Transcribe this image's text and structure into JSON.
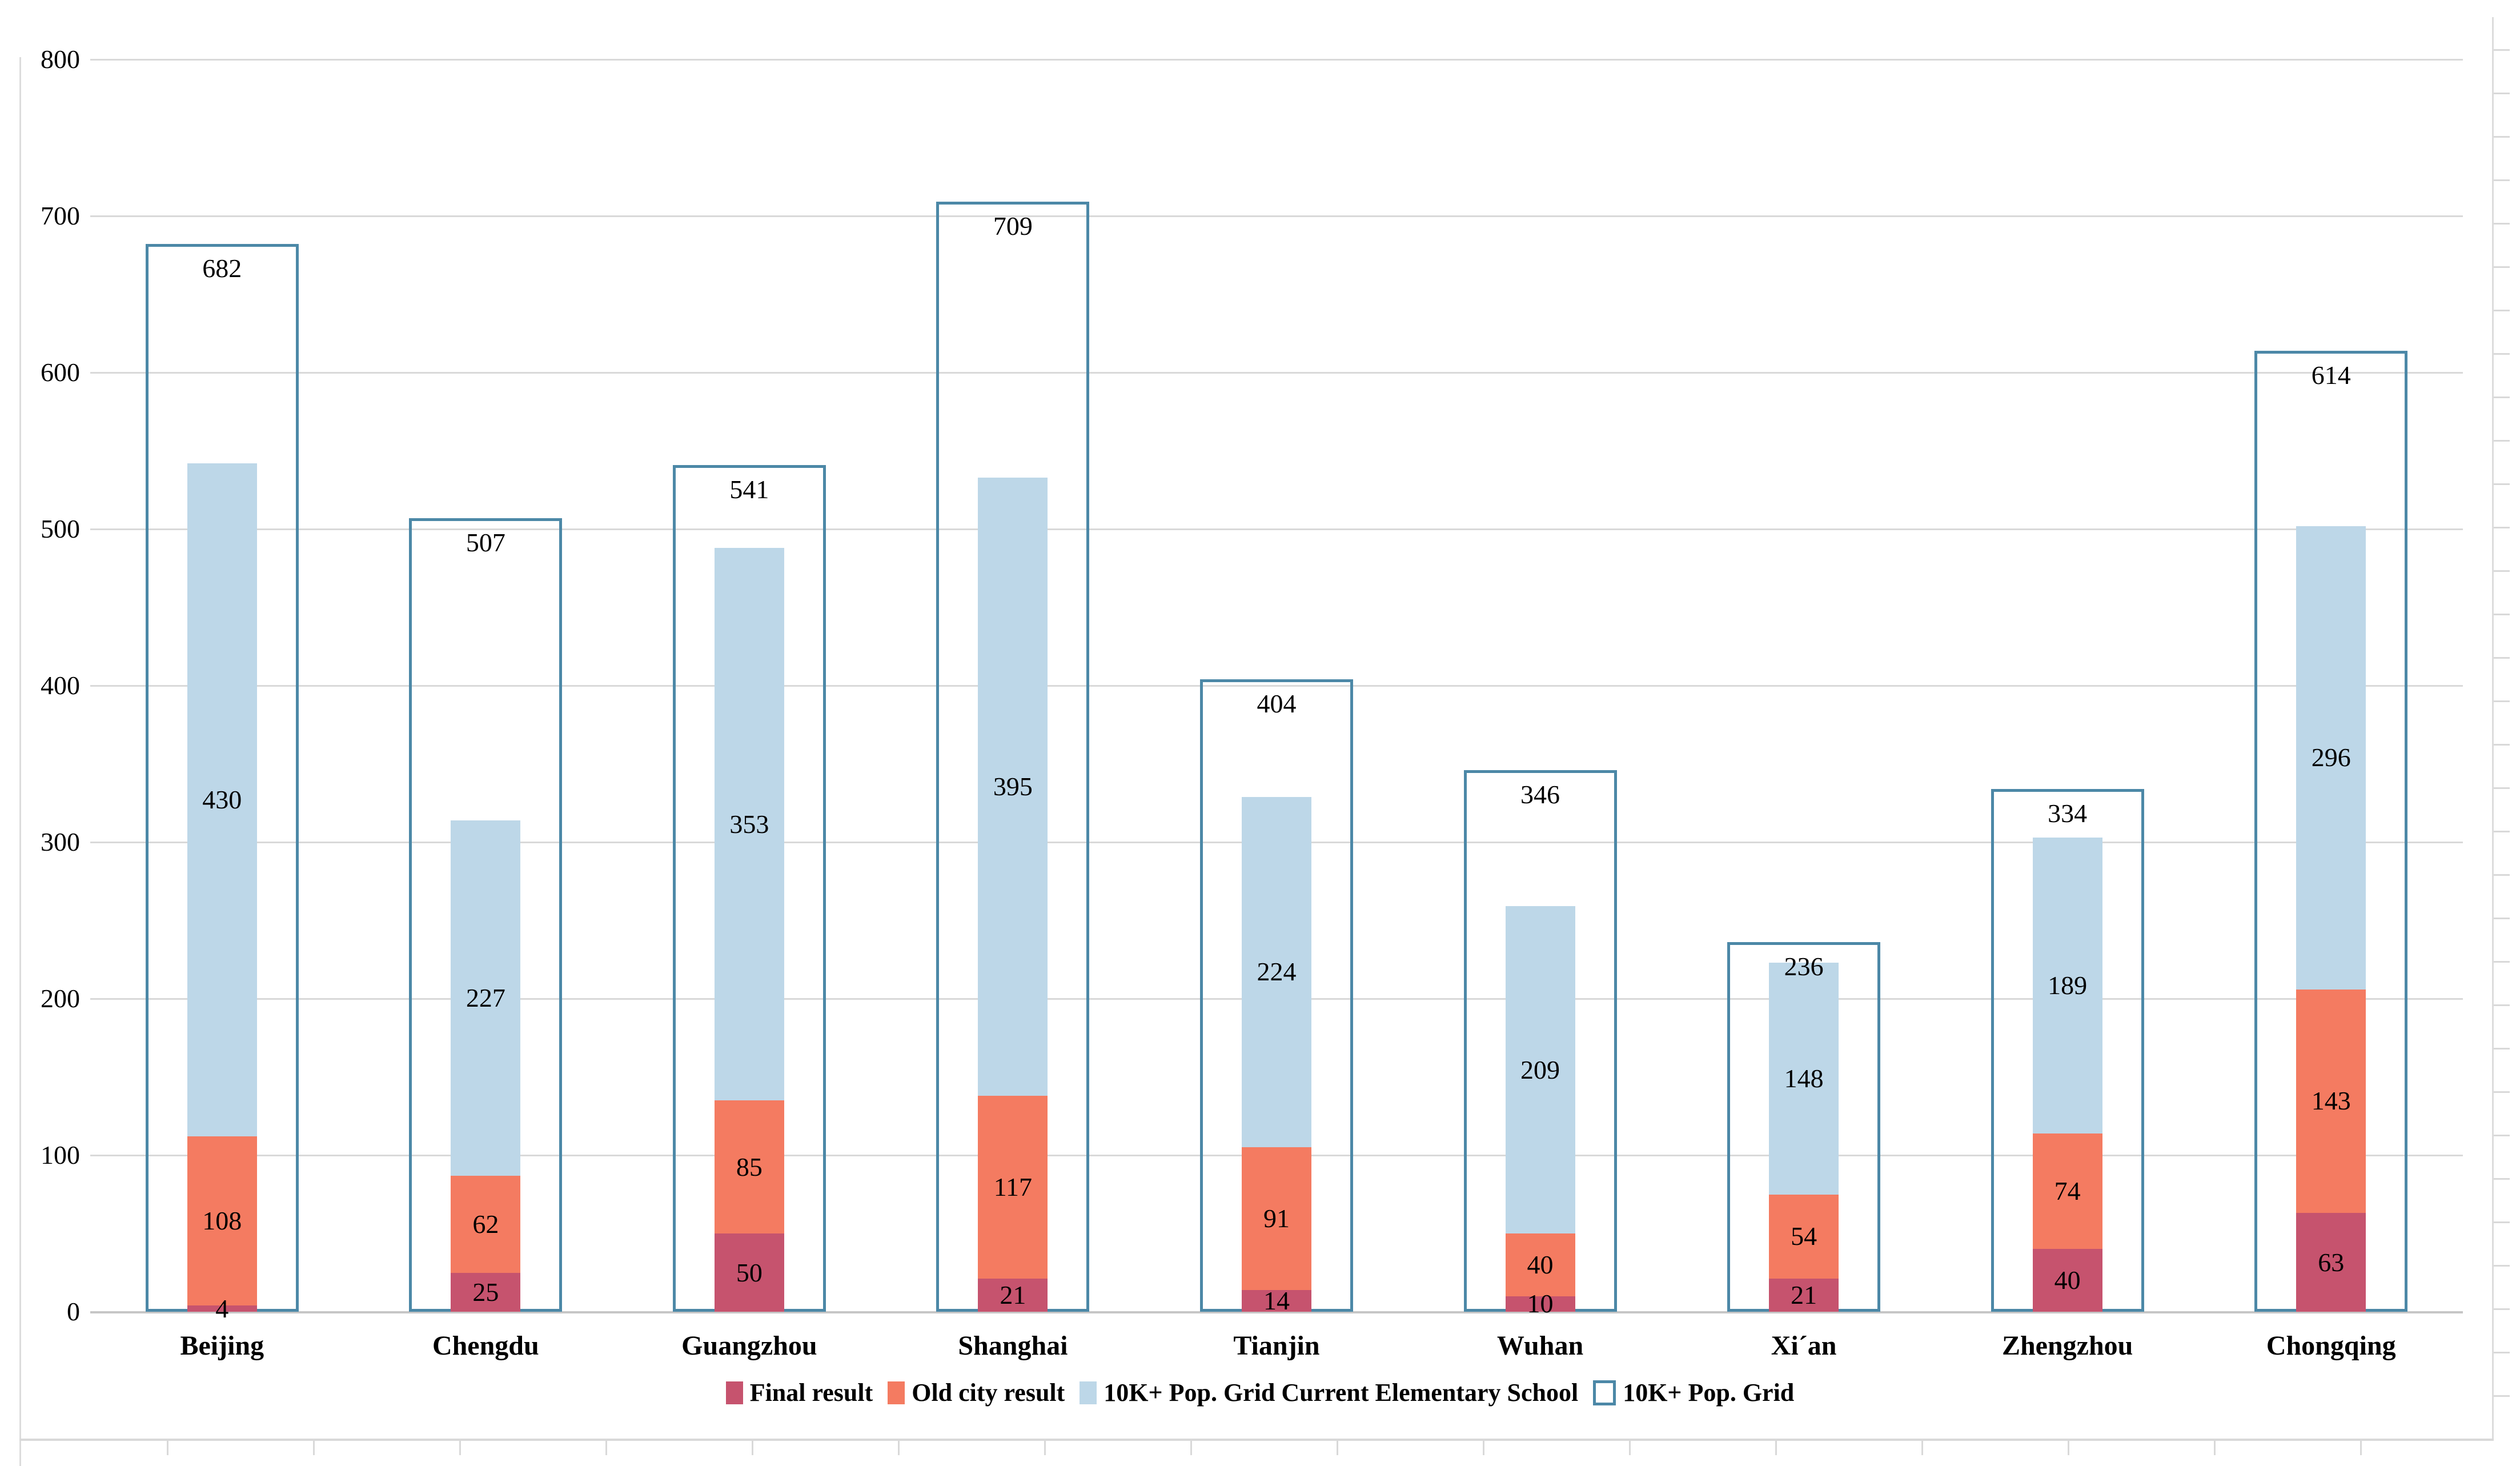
{
  "chart_data": {
    "type": "bar",
    "stacked": true,
    "title": "",
    "xlabel": "",
    "ylabel": "",
    "ylim": [
      0,
      800
    ],
    "ytick_step": 100,
    "yticks": [
      0,
      100,
      200,
      300,
      400,
      500,
      600,
      700,
      800
    ],
    "grid": true,
    "legend_position": "bottom",
    "categories": [
      "Beijing",
      "Chengdu",
      "Guangzhou",
      "Shanghai",
      "Tianjin",
      "Wuhan",
      "Xi´an",
      "Zhengzhou",
      "Chongqing"
    ],
    "series": [
      {
        "name": "Final result",
        "style": "fill",
        "color": "#c6536e",
        "values": [
          4,
          25,
          50,
          21,
          14,
          10,
          21,
          40,
          63
        ]
      },
      {
        "name": "Old city result",
        "style": "fill",
        "color": "#f47b61",
        "values": [
          108,
          62,
          85,
          117,
          91,
          40,
          54,
          74,
          143
        ]
      },
      {
        "name": "10K+ Pop. Grid Current Elementary School",
        "style": "fill",
        "color": "#bdd7e8",
        "values": [
          430,
          227,
          353,
          395,
          224,
          209,
          148,
          189,
          296
        ]
      },
      {
        "name": "10K+ Pop. Grid",
        "style": "outline",
        "color": "#ffffff",
        "border_color": "#4c88a7",
        "values": [
          682,
          507,
          541,
          709,
          404,
          346,
          236,
          334,
          614
        ]
      }
    ]
  },
  "colors": {
    "gridline": "#d9d9d9",
    "axis_line": "#c6c6c6",
    "sheet_line": "#dcdcdc",
    "text": "#000000"
  }
}
